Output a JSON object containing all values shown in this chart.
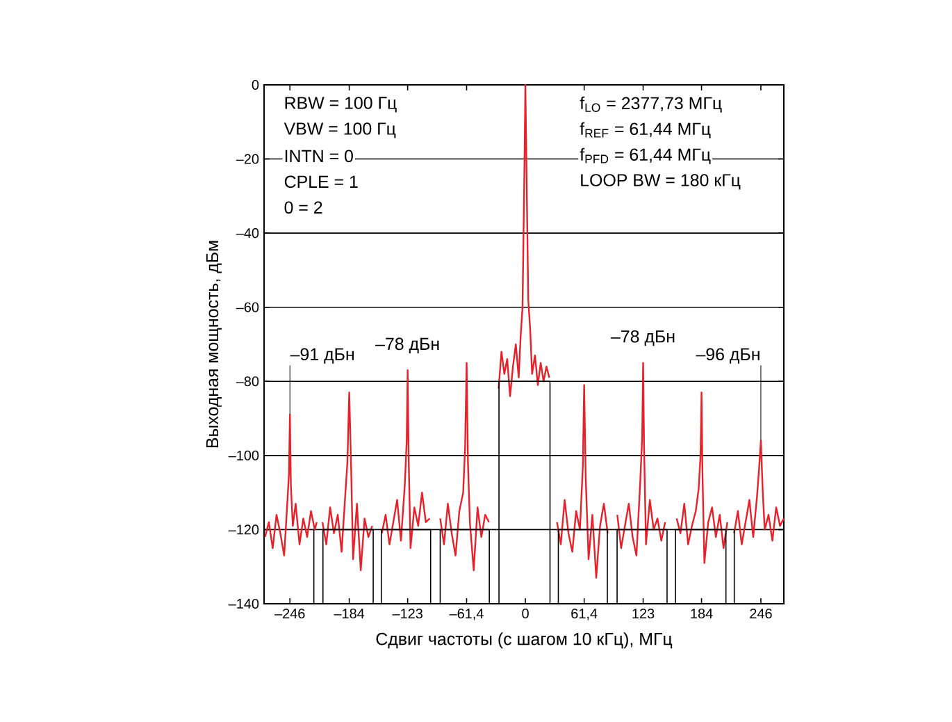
{
  "chart_data": {
    "type": "line",
    "xlabel": "Сдвиг частоты (с шагом 10 кГц), МГц",
    "ylabel": "Выходная мощность, дБм",
    "xlim": [
      -273,
      270
    ],
    "ylim": [
      -140,
      0
    ],
    "xticks": [
      {
        "value": -246,
        "label": "–246"
      },
      {
        "value": -184,
        "label": "–184"
      },
      {
        "value": -123,
        "label": "–123"
      },
      {
        "value": -61.4,
        "label": "–61,4"
      },
      0,
      {
        "value": 61.4,
        "label": "61,4"
      },
      123,
      184,
      246
    ],
    "yticks": [
      {
        "value": -140,
        "label": "–140"
      },
      {
        "value": -120,
        "label": "–120"
      },
      {
        "value": -100,
        "label": "–100"
      },
      {
        "value": -80,
        "label": "–80"
      },
      {
        "value": -60,
        "label": "–60"
      },
      {
        "value": -40,
        "label": "–40"
      },
      {
        "value": -20,
        "label": "–20"
      },
      0
    ],
    "grid": "y",
    "marker": "none",
    "line_style": "solid",
    "series": [
      {
        "color": "#e8202a",
        "x": [
          -272,
          -268,
          -264,
          -260,
          -256,
          -252,
          -249,
          -247,
          -246,
          -245,
          -243,
          -240,
          -236,
          -232,
          -228,
          -224,
          -220,
          -218,
          -215,
          -212,
          -208,
          -204,
          -200,
          -196,
          -192,
          -188,
          -186,
          -184,
          -182,
          -180,
          -176,
          -172,
          -168,
          -164,
          -160,
          -155,
          -150,
          -146,
          -142,
          -138,
          -134,
          -130,
          -126,
          -124,
          -123,
          -122,
          -120,
          -116,
          -112,
          -108,
          -104,
          -100,
          -94,
          -89,
          -85,
          -81,
          -77,
          -73,
          -69,
          -65,
          -63,
          -61.4,
          -60,
          -58,
          -54,
          -50,
          -46,
          -42,
          -38,
          -33,
          -28,
          -25,
          -22,
          -19,
          -16,
          -13,
          -10,
          -7,
          -5,
          -3,
          -1,
          0,
          1,
          3,
          5,
          7,
          10,
          13,
          16,
          19,
          22,
          25,
          30,
          33,
          37,
          41,
          45,
          49,
          53,
          57,
          60,
          61.4,
          63,
          66,
          70,
          74,
          78,
          82,
          86,
          91,
          96,
          100,
          104,
          108,
          112,
          116,
          120,
          122,
          123,
          124,
          126,
          130,
          134,
          138,
          142,
          146,
          152,
          158,
          162,
          166,
          170,
          174,
          178,
          181,
          183,
          184,
          185,
          187,
          191,
          195,
          199,
          203,
          207,
          211,
          214,
          218,
          222,
          226,
          230,
          234,
          238,
          242,
          244,
          246,
          248,
          250,
          254,
          258,
          262,
          266,
          270
        ],
        "values": [
          -122,
          -118,
          -125,
          -116,
          -121,
          -127,
          -114,
          -105,
          -89,
          -108,
          -119,
          -113,
          -124,
          -117,
          -122,
          -115,
          -120,
          -118,
          null,
          -118,
          -124,
          -114,
          -121,
          -116,
          -126,
          -110,
          -102,
          -83,
          -104,
          -128,
          -113,
          -131,
          -117,
          -122,
          -119,
          null,
          -121,
          -116,
          -124,
          -118,
          -112,
          -123,
          -108,
          -96,
          -77,
          -100,
          -125,
          -114,
          -119,
          -110,
          -118,
          -117,
          null,
          -117,
          -124,
          -113,
          -121,
          -127,
          -115,
          -110,
          -98,
          -75,
          -102,
          -118,
          -131,
          -114,
          -122,
          -116,
          -118,
          null,
          -82,
          -72,
          -78,
          -74,
          -84,
          -76,
          -70,
          -79,
          -68,
          -60,
          -22,
          0,
          -20,
          -58,
          -66,
          -78,
          -73,
          -81,
          -75,
          -80,
          -76,
          -79,
          null,
          -118,
          -124,
          -112,
          -121,
          -126,
          -115,
          -120,
          -103,
          -81,
          -106,
          -128,
          -116,
          -133,
          -119,
          -113,
          -121,
          null,
          -116,
          -125,
          -119,
          -113,
          -122,
          -127,
          -107,
          -95,
          -75,
          -98,
          -124,
          -112,
          -120,
          -117,
          -123,
          -118,
          null,
          -117,
          -121,
          -113,
          -124,
          -119,
          -115,
          -109,
          -100,
          -83,
          -105,
          -129,
          -118,
          -114,
          -122,
          -116,
          -125,
          -118,
          null,
          -121,
          -115,
          -124,
          -118,
          -112,
          -122,
          -111,
          -104,
          -96,
          -110,
          -120,
          -116,
          -123,
          -114,
          -119,
          -117
        ]
      },
      {
        "color": "#000000",
        "x": [
          -221,
          -221,
          -211.5,
          -211.5,
          -159,
          -159,
          -150.5,
          -150.5,
          -99,
          -99,
          -89,
          -89,
          -37.7,
          -37.7,
          -27.6,
          -27.6,
          25.7,
          25.7,
          34.4,
          34.4,
          85.6,
          85.6,
          95.8,
          95.8,
          148,
          148,
          156.8,
          156.8,
          209.5,
          209.5,
          218.2,
          218.2
        ],
        "values": [
          -120,
          -140,
          -140,
          -120,
          -120,
          -140,
          -140,
          -120,
          -120,
          -140,
          -140,
          -120,
          -120,
          -140,
          -140,
          -80,
          -80,
          -140,
          -140,
          -120,
          -120,
          -140,
          -140,
          -120,
          -120,
          -140,
          -140,
          -120,
          -120,
          -140,
          -140,
          -120
        ]
      }
    ],
    "annotations": [
      "RBW = 100 Гц",
      "VBW = 100 Гц",
      "INTN = 0",
      "CPLE = 1",
      "0 = 2",
      "f$_{LO}$ = 2377,73 МГц",
      "f$_{REF}$ = 61,44 МГц",
      "f$_{PFD}$ = 61,44 МГц",
      "LOOP BW = 180 кГц",
      {
        "text": "–91 дБн",
        "x": -246,
        "y": -89
      },
      {
        "text": "–78 дБн",
        "x": -123,
        "y": -77
      },
      {
        "text": "–78 дБн",
        "x": 123,
        "y": -75
      },
      {
        "text": "–96 дБн",
        "x": 246,
        "y": -96
      }
    ]
  }
}
